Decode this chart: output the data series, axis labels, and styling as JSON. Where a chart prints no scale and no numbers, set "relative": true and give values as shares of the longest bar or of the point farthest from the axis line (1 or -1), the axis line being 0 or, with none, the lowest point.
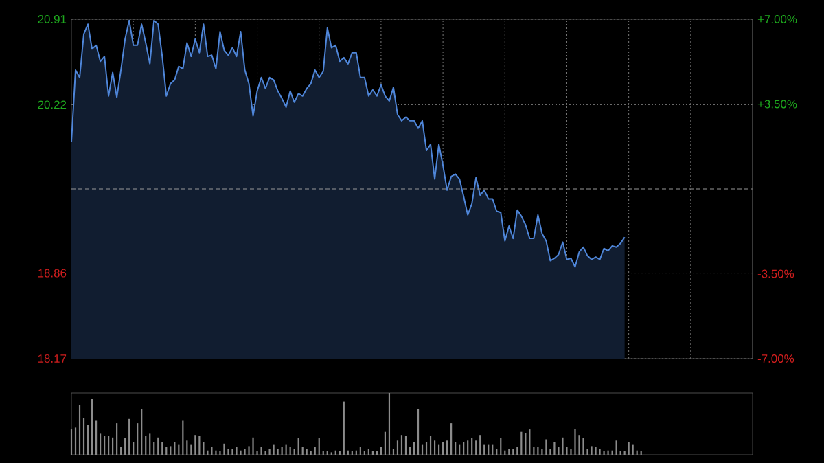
{
  "chart_data": [
    {
      "type": "area",
      "categories": [
        null,
        null,
        null,
        null,
        null,
        null,
        null,
        null,
        null,
        null,
        null,
        null,
        null,
        null,
        null,
        null,
        null,
        null,
        null,
        null,
        null,
        null,
        null,
        null,
        null,
        null,
        null,
        null,
        null,
        null,
        null,
        null,
        null,
        null,
        null,
        null,
        null,
        null,
        null,
        null,
        null,
        null,
        null,
        null,
        null,
        null,
        null,
        null,
        null,
        null,
        null,
        null,
        null,
        null,
        null,
        null,
        null,
        null,
        null,
        null,
        null,
        null,
        null,
        null,
        null,
        null,
        null,
        null,
        null,
        null,
        null,
        null,
        null,
        null,
        null,
        null,
        null,
        null,
        null,
        null,
        null,
        null,
        null,
        null,
        null,
        null,
        null,
        null,
        null,
        null,
        null,
        null,
        null,
        null,
        null,
        null,
        null,
        null,
        null,
        null,
        null,
        null,
        null,
        null,
        null,
        null,
        null,
        null,
        null,
        null,
        null,
        null,
        null,
        null,
        null,
        null,
        null,
        null,
        null,
        null,
        null,
        null,
        null,
        null,
        null,
        null,
        null,
        null,
        null,
        null,
        null,
        null,
        null,
        null,
        null,
        null,
        null,
        null,
        null,
        null,
        null,
        null,
        null,
        null,
        null,
        null,
        null,
        null,
        null,
        null,
        null,
        null,
        null,
        null,
        null,
        null,
        null,
        null,
        null,
        null,
        null,
        null,
        null,
        null,
        null,
        null
      ],
      "ylim": [
        18.17,
        20.91
      ],
      "yticks": [
        18.17,
        18.86,
        20.22,
        20.91
      ],
      "y2lim": [
        -7,
        7
      ],
      "y2ticks": [
        {
          "value": -7,
          "label": "-7.00%"
        },
        {
          "value": -3.5,
          "label": "-3.50%"
        },
        {
          "value": 3.5,
          "label": "+3.50%"
        },
        {
          "value": 7,
          "label": "+7.00%"
        }
      ],
      "grid": true,
      "tick_labels": "y",
      "ref_lines": [
        {
          "axis": "y",
          "value": 19.54,
          "color": "#9a9a9a",
          "line_style": "dashed"
        }
      ],
      "series": [
        {
          "color": "#4f86d9",
          "values": [
            19.92,
            20.5,
            20.44,
            20.79,
            20.87,
            20.67,
            20.7,
            20.57,
            20.61,
            20.29,
            20.48,
            20.28,
            20.5,
            20.75,
            20.9,
            20.7,
            20.7,
            20.87,
            20.72,
            20.55,
            20.9,
            20.87,
            20.61,
            20.29,
            20.39,
            20.42,
            20.53,
            20.51,
            20.72,
            20.61,
            20.75,
            20.64,
            20.87,
            20.61,
            20.62,
            20.51,
            20.81,
            20.66,
            20.62,
            20.68,
            20.61,
            20.81,
            20.5,
            20.39,
            20.13,
            20.33,
            20.44,
            20.35,
            20.44,
            20.42,
            20.33,
            20.27,
            20.2,
            20.33,
            20.24,
            20.31,
            20.29,
            20.35,
            20.39,
            20.5,
            20.44,
            20.49,
            20.84,
            20.68,
            20.7,
            20.57,
            20.6,
            20.55,
            20.64,
            20.64,
            20.44,
            20.44,
            20.29,
            20.34,
            20.29,
            20.38,
            20.29,
            20.25,
            20.36,
            20.14,
            20.09,
            20.12,
            20.09,
            20.09,
            20.03,
            20.09,
            19.85,
            19.9,
            19.62,
            19.9,
            19.73,
            19.53,
            19.64,
            19.66,
            19.62,
            19.48,
            19.33,
            19.42,
            19.63,
            19.49,
            19.53,
            19.46,
            19.46,
            19.36,
            19.35,
            19.12,
            19.24,
            19.14,
            19.37,
            19.32,
            19.25,
            19.14,
            19.14,
            19.33,
            19.18,
            19.12,
            18.96,
            18.98,
            19.01,
            19.11,
            18.97,
            18.98,
            18.91,
            19.03,
            19.07,
            19.0,
            18.97,
            18.99,
            18.97,
            19.06,
            19.04,
            19.08,
            19.07,
            19.1,
            19.15,
            null,
            null,
            null,
            null,
            null,
            null,
            null,
            null,
            null,
            null,
            null,
            null,
            null,
            null,
            null,
            null,
            null,
            null,
            null,
            null,
            null,
            null,
            null,
            null,
            null,
            null,
            null,
            null,
            null,
            null,
            null
          ]
        }
      ]
    },
    {
      "type": "bar",
      "relative": true,
      "tick_labels": false,
      "categories": [
        null,
        null,
        null,
        null,
        null,
        null,
        null,
        null,
        null,
        null,
        null,
        null,
        null,
        null,
        null,
        null,
        null,
        null,
        null,
        null,
        null,
        null,
        null,
        null,
        null,
        null,
        null,
        null,
        null,
        null,
        null,
        null,
        null,
        null,
        null,
        null,
        null,
        null,
        null,
        null,
        null,
        null,
        null,
        null,
        null,
        null,
        null,
        null,
        null,
        null,
        null,
        null,
        null,
        null,
        null,
        null,
        null,
        null,
        null,
        null,
        null,
        null,
        null,
        null,
        null,
        null,
        null,
        null,
        null,
        null,
        null,
        null,
        null,
        null,
        null,
        null,
        null,
        null,
        null,
        null,
        null,
        null,
        null,
        null,
        null,
        null,
        null,
        null,
        null,
        null,
        null,
        null,
        null,
        null,
        null,
        null,
        null,
        null,
        null,
        null,
        null,
        null,
        null,
        null,
        null,
        null,
        null,
        null,
        null,
        null,
        null,
        null,
        null,
        null,
        null,
        null,
        null,
        null,
        null,
        null,
        null,
        null,
        null,
        null,
        null,
        null,
        null,
        null,
        null,
        null,
        null,
        null,
        null,
        null,
        null,
        null,
        null,
        null,
        null,
        null,
        null,
        null,
        null,
        null,
        null,
        null,
        null,
        null,
        null,
        null,
        null,
        null,
        null,
        null,
        null,
        null,
        null,
        null,
        null,
        null,
        null,
        null,
        null,
        null,
        null,
        null
      ],
      "series": [
        {
          "color": "#8c8c8c",
          "values": [
            0.41,
            0.44,
            0.81,
            0.6,
            0.48,
            0.9,
            0.55,
            0.34,
            0.3,
            0.3,
            0.28,
            0.51,
            0.13,
            0.27,
            0.58,
            0.2,
            0.51,
            0.74,
            0.3,
            0.34,
            0.2,
            0.28,
            0.2,
            0.13,
            0.14,
            0.2,
            0.16,
            0.55,
            0.23,
            0.16,
            0.32,
            0.3,
            0.2,
            0.07,
            0.13,
            0.07,
            0.06,
            0.18,
            0.09,
            0.09,
            0.13,
            0.07,
            0.09,
            0.14,
            0.28,
            0.06,
            0.13,
            0.06,
            0.09,
            0.16,
            0.09,
            0.13,
            0.16,
            0.13,
            0.09,
            0.27,
            0.13,
            0.09,
            0.06,
            0.13,
            0.27,
            0.06,
            0.06,
            0.04,
            0.07,
            0.06,
            0.86,
            0.07,
            0.06,
            0.07,
            0.13,
            0.06,
            0.09,
            0.06,
            0.06,
            0.13,
            0.37,
            1.0,
            0.09,
            0.23,
            0.32,
            0.3,
            0.13,
            0.2,
            0.74,
            0.16,
            0.2,
            0.3,
            0.23,
            0.16,
            0.2,
            0.23,
            0.51,
            0.2,
            0.16,
            0.2,
            0.23,
            0.27,
            0.23,
            0.32,
            0.16,
            0.16,
            0.16,
            0.09,
            0.27,
            0.07,
            0.09,
            0.09,
            0.13,
            0.37,
            0.35,
            0.41,
            0.13,
            0.13,
            0.09,
            0.25,
            0.09,
            0.21,
            0.13,
            0.28,
            0.13,
            0.09,
            0.42,
            0.32,
            0.27,
            0.09,
            0.14,
            0.13,
            0.09,
            0.06,
            0.07,
            0.07,
            0.23,
            0.06,
            0.06,
            0.21,
            0.16,
            0.07,
            0.06,
            null,
            null,
            null,
            null,
            null,
            null,
            null,
            null,
            null,
            null,
            null,
            null,
            null,
            null,
            null,
            null,
            null,
            null,
            null,
            null,
            null,
            null,
            null,
            null,
            null,
            null,
            null
          ]
        }
      ]
    }
  ]
}
